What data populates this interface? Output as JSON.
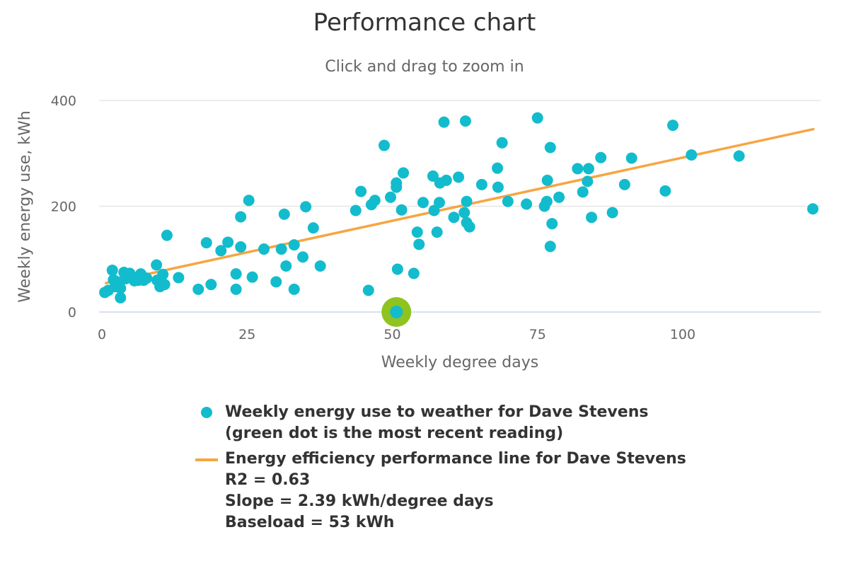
{
  "colors": {
    "scatter": "#12bccd",
    "latest_halo": "#8fc31f",
    "trend": "#f7a541",
    "grid": "#e6e6e6",
    "axis": "#ccd6eb"
  },
  "chart_data": {
    "type": "scatter",
    "title": "Performance chart",
    "subtitle": "Click and drag to zoom in",
    "xlabel": "Weekly degree days",
    "ylabel": "Weekly energy use, kWh",
    "xlim": [
      0,
      124
    ],
    "ylim": [
      0,
      400
    ],
    "x_ticks": [
      0,
      25,
      50,
      75,
      100
    ],
    "y_ticks": [
      0,
      200,
      400
    ],
    "x_tick_labels": [
      "0",
      "25",
      "50",
      "75",
      "100"
    ],
    "y_tick_labels": [
      "0",
      "200",
      "400"
    ],
    "grid": "horizontal",
    "legend_position": "bottom",
    "series": [
      {
        "name": "Weekly energy use to weather for Dave Stevens",
        "type": "scatter",
        "points": [
          [
            0.5,
            37
          ],
          [
            1.1,
            41
          ],
          [
            1.8,
            79
          ],
          [
            2.0,
            61
          ],
          [
            2.3,
            48
          ],
          [
            2.7,
            57
          ],
          [
            3.2,
            27
          ],
          [
            3.2,
            45
          ],
          [
            3.8,
            75
          ],
          [
            4.1,
            63
          ],
          [
            4.8,
            73
          ],
          [
            5.1,
            65
          ],
          [
            5.6,
            59
          ],
          [
            6.3,
            60
          ],
          [
            6.7,
            72
          ],
          [
            7.2,
            60
          ],
          [
            7.7,
            64
          ],
          [
            9.4,
            89
          ],
          [
            9.5,
            60
          ],
          [
            10.0,
            48
          ],
          [
            10.5,
            71
          ],
          [
            10.8,
            52
          ],
          [
            11.2,
            145
          ],
          [
            13.2,
            65
          ],
          [
            16.6,
            43
          ],
          [
            18.0,
            131
          ],
          [
            18.8,
            52
          ],
          [
            20.5,
            116
          ],
          [
            21.7,
            132
          ],
          [
            23.1,
            72
          ],
          [
            23.1,
            43
          ],
          [
            23.9,
            180
          ],
          [
            23.9,
            123
          ],
          [
            25.3,
            211
          ],
          [
            25.9,
            66
          ],
          [
            27.9,
            119
          ],
          [
            30.0,
            57
          ],
          [
            30.9,
            119
          ],
          [
            31.4,
            185
          ],
          [
            31.7,
            87
          ],
          [
            33.1,
            127
          ],
          [
            33.1,
            43
          ],
          [
            34.6,
            104
          ],
          [
            35.1,
            199
          ],
          [
            36.4,
            159
          ],
          [
            37.6,
            87
          ],
          [
            43.7,
            192
          ],
          [
            44.6,
            228
          ],
          [
            45.9,
            41
          ],
          [
            46.4,
            203
          ],
          [
            47.0,
            211
          ],
          [
            48.6,
            315
          ],
          [
            49.7,
            217
          ],
          [
            50.7,
            244
          ],
          [
            50.7,
            236
          ],
          [
            50.9,
            81
          ],
          [
            51.6,
            193
          ],
          [
            51.9,
            263
          ],
          [
            53.7,
            73
          ],
          [
            54.3,
            151
          ],
          [
            54.6,
            128
          ],
          [
            55.3,
            207
          ],
          [
            57.0,
            257
          ],
          [
            57.2,
            192
          ],
          [
            57.7,
            151
          ],
          [
            58.1,
            207
          ],
          [
            58.2,
            244
          ],
          [
            58.9,
            359
          ],
          [
            59.3,
            249
          ],
          [
            60.6,
            179
          ],
          [
            61.4,
            255
          ],
          [
            62.4,
            188
          ],
          [
            62.6,
            361
          ],
          [
            62.8,
            209
          ],
          [
            62.8,
            169
          ],
          [
            63.3,
            161
          ],
          [
            65.4,
            241
          ],
          [
            68.1,
            272
          ],
          [
            68.2,
            236
          ],
          [
            68.9,
            320
          ],
          [
            69.9,
            209
          ],
          [
            73.1,
            204
          ],
          [
            75.0,
            367
          ],
          [
            76.2,
            200
          ],
          [
            76.6,
            209
          ],
          [
            76.7,
            249
          ],
          [
            77.2,
            311
          ],
          [
            77.2,
            124
          ],
          [
            77.5,
            167
          ],
          [
            78.7,
            217
          ],
          [
            81.9,
            271
          ],
          [
            82.8,
            227
          ],
          [
            83.6,
            247
          ],
          [
            83.8,
            271
          ],
          [
            84.3,
            179
          ],
          [
            85.9,
            292
          ],
          [
            87.9,
            188
          ],
          [
            90.0,
            241
          ],
          [
            91.2,
            291
          ],
          [
            97.0,
            229
          ],
          [
            98.3,
            353
          ],
          [
            101.5,
            297
          ],
          [
            109.7,
            295
          ],
          [
            122.4,
            195
          ]
        ]
      },
      {
        "name": "Most recent reading",
        "type": "scatter-highlight",
        "points": [
          [
            50.7,
            0
          ]
        ]
      },
      {
        "name": "Energy efficiency performance line for Dave Stevens",
        "type": "line",
        "slope": 2.39,
        "intercept": 53,
        "x_range": [
          0.7,
          122.5
        ]
      }
    ],
    "stats": {
      "r2": 0.63,
      "slope": 2.39,
      "baseload": 53
    }
  },
  "legend": {
    "items": [
      {
        "lines": [
          "Weekly energy use to weather for Dave Stevens",
          "(green dot is the most recent reading)"
        ]
      },
      {
        "lines": [
          "Energy efficiency performance line for Dave Stevens",
          "R2 = 0.63",
          "Slope = 2.39 kWh/degree days",
          "Baseload = 53 kWh"
        ]
      }
    ]
  }
}
